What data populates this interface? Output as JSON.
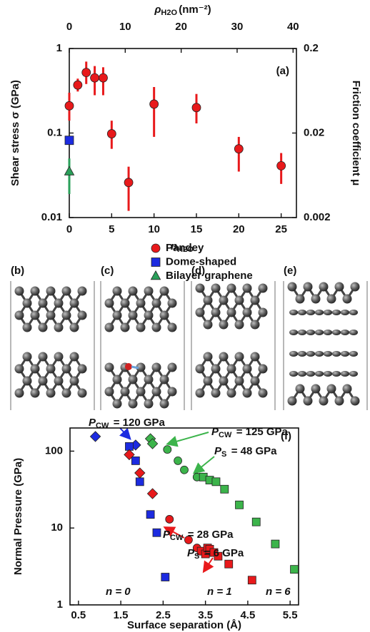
{
  "chart_data": [
    {
      "type": "scatter",
      "label": "(a)",
      "x_label": {
        "symbol": "n",
        "subscript": "H2O"
      },
      "x2_label": {
        "symbol": "ρ",
        "subscript": "H2O",
        "text": "(nm⁻²)"
      },
      "y_label": "Shear stress σ (GPa)",
      "y2_label": "Friction coefficient μ",
      "xlim": [
        0,
        26.8
      ],
      "xticks": [
        0,
        5,
        10,
        15,
        20,
        25
      ],
      "x2lim": [
        0,
        40.6
      ],
      "x2ticks": [
        0,
        10,
        20,
        30,
        40
      ],
      "ylim": [
        0.01,
        1
      ],
      "yticks": [
        0.01,
        0.1,
        1
      ],
      "y2lim": [
        0.002,
        0.2
      ],
      "y2ticks": [
        0.002,
        0.02,
        0.2
      ],
      "log_y": true,
      "series": [
        {
          "name": "Pandey",
          "color": "#e8191b",
          "marker": "circle",
          "x": [
            0,
            1,
            2,
            3,
            4,
            5,
            7,
            10,
            15,
            20,
            25
          ],
          "values": [
            0.21,
            0.37,
            0.52,
            0.45,
            0.45,
            0.098,
            0.026,
            0.22,
            0.2,
            0.065,
            0.041
          ],
          "err_low": [
            0.14,
            0.31,
            0.38,
            0.28,
            0.28,
            0.065,
            0.012,
            0.09,
            0.13,
            0.035,
            0.025
          ],
          "err_high": [
            0.3,
            0.44,
            0.7,
            0.62,
            0.6,
            0.14,
            0.04,
            0.35,
            0.29,
            0.09,
            0.058
          ]
        },
        {
          "name": "Dome-shaped",
          "color": "#1c2be0",
          "marker": "square",
          "x": [
            0
          ],
          "values": [
            0.082
          ]
        },
        {
          "name": "Bilayer graphene",
          "color": "#2aa05a",
          "marker": "triangle",
          "x": [
            0
          ],
          "values": [
            0.035
          ],
          "err_low": [
            0.019
          ],
          "err_high": [
            0.05
          ]
        }
      ]
    },
    {
      "type": "scatter",
      "label": "(f)",
      "x_label": "Surface separation (Å)",
      "y_label": "Normal Pressure (GPa)",
      "xlim": [
        0.3,
        5.7
      ],
      "xticks": [
        0.5,
        1.5,
        2.5,
        3.5,
        4.5,
        5.5
      ],
      "ylim": [
        1,
        200
      ],
      "yticks": [
        1,
        10,
        100
      ],
      "log_y": true,
      "series": [
        {
          "name": "n = 0",
          "color": "#1c2be0",
          "x": [
            0.9,
            1.85,
            1.7,
            1.85,
            1.95,
            2.2,
            2.35,
            2.55
          ],
          "values": [
            155,
            120,
            115,
            75,
            40,
            15,
            8.7,
            2.3
          ],
          "markers": [
            "diamond",
            "diamond",
            "square",
            "square",
            "square",
            "square",
            "square",
            "square"
          ]
        },
        {
          "name": "n = 1",
          "color": "#e8191b",
          "x": [
            1.7,
            1.95,
            2.25,
            2.65,
            3.1,
            3.3,
            3.4,
            3.5,
            3.55,
            3.6,
            3.7,
            3.8,
            4.05,
            4.6
          ],
          "values": [
            90,
            52,
            28,
            13,
            7,
            5.5,
            5.0,
            4.6,
            5.5,
            5.3,
            4.8,
            4.3,
            3.4,
            2.1
          ],
          "markers": [
            "diamond",
            "diamond",
            "diamond",
            "circle",
            "circle",
            "circle",
            "square",
            "square",
            "square",
            "square",
            "square",
            "square",
            "square",
            "square"
          ]
        },
        {
          "name": "n = 6",
          "color": "#3cb44b",
          "x": [
            2.2,
            2.25,
            2.6,
            2.85,
            3.0,
            3.3,
            3.45,
            3.6,
            3.75,
            3.95,
            4.3,
            4.7,
            5.15,
            5.6
          ],
          "values": [
            145,
            125,
            105,
            75,
            57,
            46,
            46,
            42,
            40,
            32,
            20,
            12,
            6.2,
            2.9
          ],
          "markers": [
            "diamond",
            "diamond",
            "circle",
            "circle",
            "circle",
            "circle",
            "square",
            "square",
            "square",
            "square",
            "square",
            "square",
            "square",
            "square"
          ]
        }
      ],
      "annotations": [
        {
          "symbol": "P",
          "subscript": "CW",
          "text": " = 120 GPa",
          "color": "#1c2be0"
        },
        {
          "symbol": "P",
          "subscript": "CW",
          "text": " = 125 GPa",
          "color": "#3cb44b"
        },
        {
          "symbol": "P",
          "subscript": "S",
          "text": " = 48 GPa",
          "color": "#3cb44b"
        },
        {
          "symbol": "P",
          "subscript": "CW",
          "text": " = 28 GPa",
          "color": "#e8191b"
        },
        {
          "symbol": "P",
          "subscript": "S",
          "text": " = 6 GPa",
          "color": "#e8191b"
        }
      ]
    }
  ],
  "panel_labels": [
    "(b)",
    "(c)",
    "(d)",
    "(e)"
  ]
}
